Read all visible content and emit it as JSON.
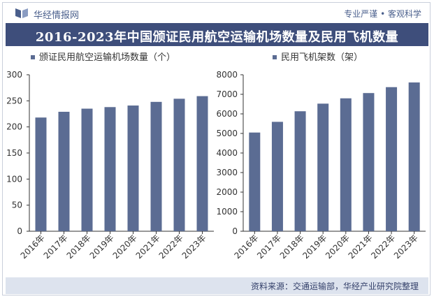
{
  "header": {
    "brand": "华经情报网",
    "slogan": "专业严谨 • 客观科学",
    "title": "2016-2023年中国颁证民用航空运输机场数量及民用飞机数量"
  },
  "footer": {
    "source": "资料来源：交通运输部，华经产业研究院整理"
  },
  "colors": {
    "bar": "#5b6c93",
    "title_bg": "#3e4e7b",
    "footer_bg": "#dde3ee"
  },
  "chart_data": [
    {
      "type": "bar",
      "legend": "颁证民用航空运输机场数量（个）",
      "categories": [
        "2016年",
        "2017年",
        "2018年",
        "2019年",
        "2020年",
        "2021年",
        "2022年",
        "2023年"
      ],
      "values": [
        218,
        229,
        235,
        238,
        241,
        248,
        254,
        259
      ],
      "yticks": [
        0,
        50,
        100,
        150,
        200,
        250,
        300
      ],
      "ylim": [
        0,
        300
      ]
    },
    {
      "type": "bar",
      "legend": "民用飞机架数（架）",
      "categories": [
        "2016年",
        "2017年",
        "2018年",
        "2019年",
        "2020年",
        "2021年",
        "2022年",
        "2023年"
      ],
      "values": [
        5046,
        5593,
        6134,
        6523,
        6795,
        7064,
        7367,
        7606
      ],
      "yticks": [
        0,
        1000,
        2000,
        3000,
        4000,
        5000,
        6000,
        7000,
        8000
      ],
      "ylim": [
        0,
        8000
      ]
    }
  ]
}
